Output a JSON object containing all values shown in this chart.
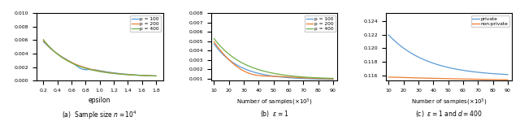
{
  "fig1": {
    "title": "(a)  Sample size $n = 10^4$",
    "xlabel": "epsilon",
    "legend": [
      "p = 100",
      "p = 200",
      "p = 400"
    ],
    "colors": [
      "#5b9bd5",
      "#ed7d31",
      "#70ad47"
    ],
    "xlim": [
      0.1,
      1.9
    ],
    "ylim": [
      0.0,
      0.01
    ],
    "yticks": [
      0.0,
      0.002,
      0.004,
      0.006,
      0.008,
      0.01
    ],
    "xticks": [
      0.2,
      0.4,
      0.6,
      0.8,
      1.0,
      1.2,
      1.4,
      1.6,
      1.8
    ]
  },
  "fig2": {
    "title": "(b)  $\\epsilon = 1$",
    "xlabel": "Number of samples($\\times 10^3$)",
    "legend": [
      "p = 100",
      "p = 200",
      "p = 400"
    ],
    "colors": [
      "#5b9bd5",
      "#ed7d31",
      "#70ad47"
    ],
    "xlim": [
      8,
      93
    ],
    "ylim": [
      0.0008,
      0.008
    ],
    "yticks": [
      0.001,
      0.002,
      0.003,
      0.004,
      0.005,
      0.006,
      0.007,
      0.008
    ],
    "xticks": [
      10,
      20,
      30,
      40,
      50,
      60,
      70,
      80,
      90
    ]
  },
  "fig3": {
    "title": "(c)  $\\epsilon = 1$ and $d = 400$",
    "xlabel": "Number of samples($\\times 10^3$)",
    "legend": [
      "private",
      "non-private"
    ],
    "colors": [
      "#5b9bd5",
      "#ed7d31"
    ],
    "xlim": [
      8,
      93
    ],
    "ylim": [
      0.1152,
      0.1252
    ],
    "yticks": [
      0.116,
      0.118,
      0.12,
      0.122,
      0.124
    ],
    "xticks": [
      10,
      20,
      30,
      40,
      50,
      60,
      70,
      80,
      90
    ]
  }
}
